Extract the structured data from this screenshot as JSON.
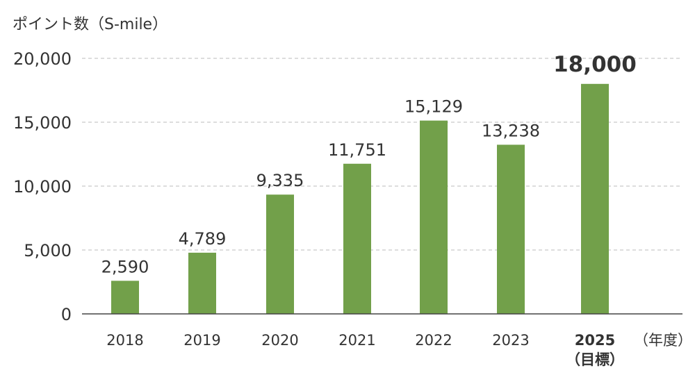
{
  "chart_data": {
    "type": "bar",
    "ylabel": "ポイント数（S-mile）",
    "xlabel_unit": "（年度）",
    "categories": [
      "2018",
      "2019",
      "2020",
      "2021",
      "2022",
      "2023",
      "2025"
    ],
    "category_notes": [
      "",
      "",
      "",
      "",
      "",
      "",
      "（目標）"
    ],
    "values": [
      2590,
      4789,
      9335,
      11751,
      15129,
      13238,
      18000
    ],
    "value_labels": [
      "2,590",
      "4,789",
      "9,335",
      "11,751",
      "15,129",
      "13,238",
      "18,000"
    ],
    "highlight_index": 6,
    "ylim": [
      0,
      20000
    ],
    "yticks": [
      0,
      5000,
      10000,
      15000,
      20000
    ],
    "ytick_labels": [
      "0",
      "5,000",
      "10,000",
      "15,000",
      "20,000"
    ],
    "grid": "horizontal-dashed",
    "colors": {
      "bar": "#72a04a",
      "grid": "#bbbbbb",
      "axis": "#444444",
      "text": "#333333"
    }
  }
}
